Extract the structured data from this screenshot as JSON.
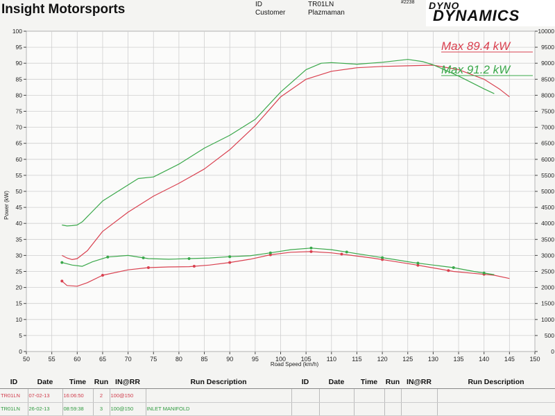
{
  "header": {
    "company": "Insight Motorsports",
    "id_label": "ID",
    "id_value": "TR01LN",
    "customer_label": "Customer",
    "customer_value": "Plazmaman",
    "ref": "#2238",
    "logo_line1": "DYNO",
    "logo_line2": "DYNAMICS"
  },
  "colors": {
    "run1": "#d9404f",
    "run2": "#3aa84a",
    "grid": "#cfcfcf",
    "background": "#f4f4f2"
  },
  "chart_data": {
    "type": "line",
    "xlabel": "Road Speed (km/h)",
    "ylabel": "Power (kW)",
    "xlim": [
      50,
      150
    ],
    "ylim": [
      0,
      100
    ],
    "y2lim": [
      0,
      10000
    ],
    "x_ticks": [
      50,
      55,
      60,
      65,
      70,
      75,
      80,
      85,
      90,
      95,
      100,
      105,
      110,
      115,
      120,
      125,
      130,
      135,
      140,
      145,
      150
    ],
    "y_ticks": [
      0,
      5,
      10,
      15,
      20,
      25,
      30,
      35,
      40,
      45,
      50,
      55,
      60,
      65,
      70,
      75,
      80,
      85,
      90,
      95,
      100
    ],
    "y2_ticks": [
      0,
      500,
      1000,
      1500,
      2000,
      2500,
      3000,
      3500,
      4000,
      4500,
      5000,
      5500,
      6000,
      6500,
      7000,
      7500,
      8000,
      8500,
      9000,
      9500,
      10000
    ],
    "grid": true,
    "annotations": [
      {
        "text": "Max 89.4 kW",
        "series": "run1"
      },
      {
        "text": "Max 91.2 kW",
        "series": "run2"
      }
    ],
    "series": [
      {
        "key": "run1_power",
        "axis": "left",
        "color_key": "run1",
        "x": [
          57,
          58,
          59,
          60,
          62,
          65,
          70,
          75,
          80,
          85,
          90,
          95,
          100,
          105,
          110,
          115,
          120,
          125,
          130,
          135,
          140,
          143,
          145
        ],
        "y": [
          30,
          29.2,
          28.7,
          29,
          31.5,
          37.5,
          43.5,
          48.5,
          52.5,
          57,
          63,
          70.5,
          79.5,
          85,
          87.5,
          88.6,
          89,
          89.2,
          89.4,
          88,
          85,
          82,
          79.5
        ]
      },
      {
        "key": "run2_power",
        "axis": "left",
        "color_key": "run2",
        "x": [
          57,
          58,
          59,
          60,
          61,
          65,
          70,
          72,
          75,
          80,
          85,
          90,
          95,
          100,
          105,
          108,
          110,
          115,
          120,
          125,
          128,
          130,
          135,
          140,
          142
        ],
        "y": [
          39.5,
          39.2,
          39.3,
          39.5,
          40.5,
          47,
          52,
          54,
          54.5,
          58.5,
          63.5,
          67.5,
          72.5,
          81,
          88,
          90,
          90.2,
          89.7,
          90.3,
          91.2,
          90.5,
          89.5,
          86,
          82,
          80.5
        ]
      },
      {
        "key": "run1_rpm",
        "axis": "right",
        "color_key": "run1",
        "x": [
          57,
          58,
          60,
          62,
          65,
          70,
          74,
          78,
          82,
          86,
          90,
          94,
          98,
          102,
          106,
          110,
          114,
          118,
          122,
          126,
          130,
          134,
          138,
          142,
          145
        ],
        "y": [
          2200,
          2060,
          2040,
          2150,
          2380,
          2550,
          2620,
          2640,
          2650,
          2700,
          2780,
          2880,
          3020,
          3100,
          3120,
          3080,
          3000,
          2920,
          2820,
          2720,
          2610,
          2500,
          2440,
          2380,
          2280
        ],
        "marker_x": [
          57,
          65,
          74,
          83,
          90,
          98,
          106,
          112,
          120,
          127,
          133,
          140
        ]
      },
      {
        "key": "run2_rpm",
        "axis": "right",
        "color_key": "run2",
        "x": [
          57,
          59,
          61,
          63,
          66,
          70,
          74,
          78,
          82,
          86,
          90,
          94,
          98,
          102,
          106,
          110,
          114,
          118,
          122,
          126,
          130,
          134,
          138,
          142
        ],
        "y": [
          2780,
          2700,
          2660,
          2800,
          2950,
          3000,
          2900,
          2880,
          2900,
          2920,
          2960,
          2990,
          3080,
          3180,
          3230,
          3180,
          3080,
          2980,
          2880,
          2780,
          2700,
          2620,
          2500,
          2400
        ],
        "marker_x": [
          57,
          66,
          73,
          82,
          90,
          98,
          106,
          113,
          120,
          127,
          134,
          140
        ]
      }
    ]
  },
  "run_table": {
    "headers": [
      "ID",
      "Date",
      "Time",
      "Run",
      "IN@RR",
      "Run Description",
      "ID",
      "Date",
      "Time",
      "Run",
      "IN@RR",
      "Run Description"
    ],
    "rows": [
      {
        "id": "TR01LN",
        "date": "07-02-13",
        "time": "16:06:50",
        "run": "2",
        "inrr": "100@150",
        "desc": ""
      },
      {
        "id": "TR01LN",
        "date": "26-02-13",
        "time": "08:59:38",
        "run": "3",
        "inrr": "100@150",
        "desc": "INLET MANIFOLD"
      }
    ]
  }
}
